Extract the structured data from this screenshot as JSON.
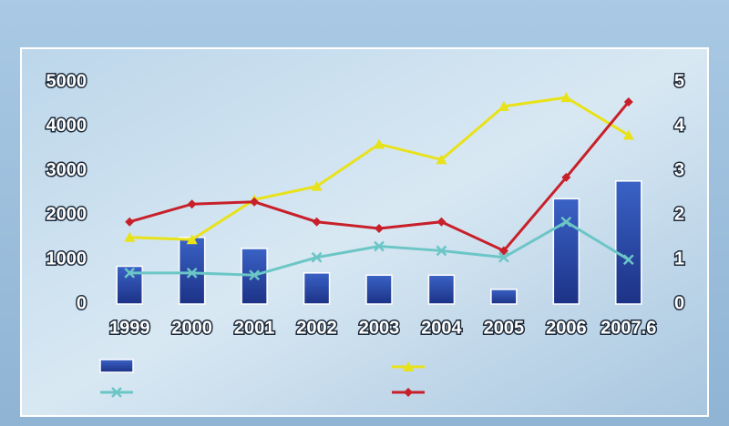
{
  "chart_data": {
    "type": "bar-line",
    "categories": [
      "1999",
      "2000",
      "2001",
      "2002",
      "2003",
      "2004",
      "2005",
      "2006",
      "2007.6"
    ],
    "series": [
      {
        "type": "bar",
        "color": "#1c3286",
        "values": [
          850,
          1500,
          1250,
          700,
          650,
          650,
          330,
          2370,
          2770
        ]
      },
      {
        "type": "line",
        "axis": "y2",
        "color": "#e8e21a",
        "marker": "triangle",
        "values": [
          1.5,
          1.45,
          2.35,
          2.65,
          3.6,
          3.25,
          4.45,
          4.65,
          3.8
        ]
      },
      {
        "type": "line",
        "axis": "y2",
        "color": "#6cc6c6",
        "marker": "x",
        "values": [
          0.7,
          0.7,
          0.65,
          1.05,
          1.3,
          1.2,
          1.05,
          1.85,
          1.0
        ]
      },
      {
        "type": "line",
        "axis": "y2",
        "color": "#c8202a",
        "marker": "diamond",
        "values": [
          1.85,
          2.25,
          2.3,
          1.85,
          1.7,
          1.85,
          1.2,
          2.85,
          4.55
        ]
      }
    ],
    "ylim": [
      0,
      5000
    ],
    "yticks": [
      0,
      1000,
      2000,
      3000,
      4000,
      5000
    ],
    "y2lim": [
      0,
      5
    ],
    "y2ticks": [
      0,
      1,
      2,
      3,
      4,
      5
    ]
  }
}
